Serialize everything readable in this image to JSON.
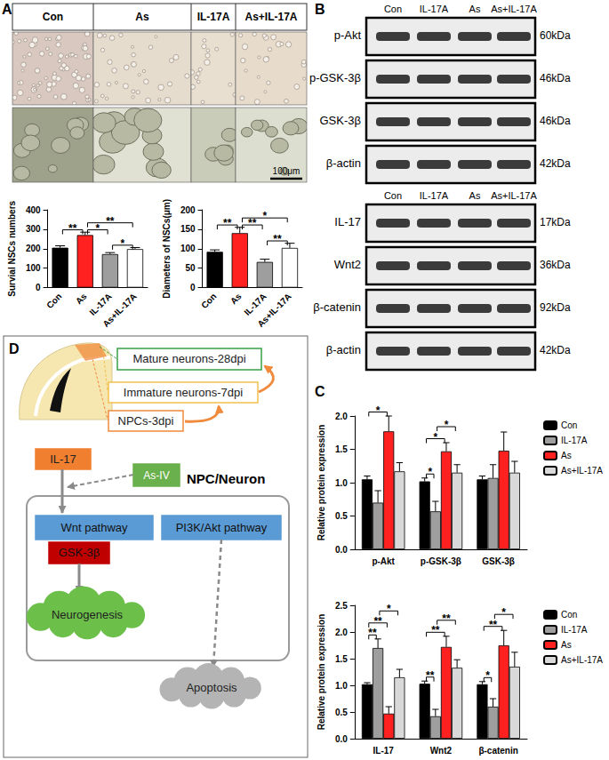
{
  "panels": {
    "A": {
      "label": "A",
      "columns": [
        "Con",
        "As",
        "IL-17A",
        "As+IL-17A"
      ],
      "scale_bar": "100μm"
    },
    "B": {
      "label": "B",
      "blots": [
        {
          "lanes": [
            "Con",
            "IL-17A",
            "As",
            "As+IL-17A"
          ],
          "rows": [
            {
              "protein": "p-Akt",
              "size": "60kDa"
            },
            {
              "protein": "p-GSK-3β",
              "size": "46kDa"
            },
            {
              "protein": "GSK-3β",
              "size": "46kDa"
            },
            {
              "protein": "β-actin",
              "size": "42kDa"
            }
          ]
        },
        {
          "lanes": [
            "Con",
            "IL-17A",
            "As",
            "As+IL-17A"
          ],
          "rows": [
            {
              "protein": "IL-17",
              "size": "17kDa"
            },
            {
              "protein": "Wnt2",
              "size": "36kDa"
            },
            {
              "protein": "β-catenin",
              "size": "92kDa"
            },
            {
              "protein": "β-actin",
              "size": "42kDa"
            }
          ]
        }
      ]
    },
    "C": {
      "label": "C"
    },
    "D": {
      "label": "D",
      "stages": [
        "Mature neurons-28dpi",
        "Immature neurons-7dpi",
        "NPCs-3dpi"
      ],
      "factor": "IL-17",
      "drug": "As-IV",
      "cell": "NPC/Neuron",
      "pathways": [
        "Wnt pathway",
        "PI3K/Akt pathway"
      ],
      "mediator": "GSK-3β",
      "outcomes": [
        "Neurogenesis",
        "Apoptosis"
      ]
    }
  },
  "chart_data": [
    {
      "type": "bar",
      "ylabel": "Survial NSCs numbers",
      "categories": [
        "Con",
        "As",
        "IL-17A",
        "As+IL-17A"
      ],
      "values": [
        205,
        270,
        172,
        198
      ],
      "errors": [
        10,
        15,
        8,
        8
      ],
      "colors": [
        "#000000",
        "#ff2020",
        "#9e9e9e",
        "#ffffff"
      ],
      "ylim": [
        0,
        400
      ],
      "yticks": [
        0,
        100,
        200,
        300,
        400
      ],
      "grid": false,
      "significance": [
        {
          "between": [
            "Con",
            "As"
          ],
          "label": "**"
        },
        {
          "between": [
            "As",
            "IL-17A"
          ],
          "label": "*"
        },
        {
          "between": [
            "IL-17A",
            "As+IL-17A"
          ],
          "label": "*"
        },
        {
          "between": [
            "As",
            "As+IL-17A"
          ],
          "label": "**"
        }
      ]
    },
    {
      "type": "bar",
      "ylabel": "Diameters of NSCs(μm)",
      "categories": [
        "Con",
        "As",
        "IL-17A",
        "As+IL-17A"
      ],
      "values": [
        92,
        140,
        66,
        102
      ],
      "errors": [
        5,
        15,
        7,
        12
      ],
      "colors": [
        "#000000",
        "#ff2020",
        "#9e9e9e",
        "#ffffff"
      ],
      "ylim": [
        0,
        200
      ],
      "yticks": [
        0,
        50,
        100,
        150,
        200
      ],
      "grid": false,
      "significance": [
        {
          "between": [
            "Con",
            "As"
          ],
          "label": "**"
        },
        {
          "between": [
            "As",
            "IL-17A"
          ],
          "label": "**"
        },
        {
          "between": [
            "IL-17A",
            "As+IL-17A"
          ],
          "label": "**"
        },
        {
          "between": [
            "As",
            "As+IL-17A"
          ],
          "label": "*"
        }
      ]
    },
    {
      "type": "bar",
      "ylabel": "Relative protein expression",
      "categories": [
        "p-Akt",
        "p-GSK-3β",
        "GSK-3β"
      ],
      "series": [
        {
          "name": "Con",
          "color": "#000000",
          "values": [
            1.05,
            1.02,
            1.05
          ],
          "errors": [
            0.05,
            0.05,
            0.05
          ]
        },
        {
          "name": "IL-17A",
          "color": "#9e9e9e",
          "values": [
            0.7,
            0.57,
            1.07
          ],
          "errors": [
            0.18,
            0.15,
            0.2
          ]
        },
        {
          "name": "As",
          "color": "#ff2020",
          "values": [
            1.77,
            1.47,
            1.48
          ],
          "errors": [
            0.23,
            0.13,
            0.28
          ]
        },
        {
          "name": "As+IL-17A",
          "color": "#d9d9d9",
          "values": [
            1.17,
            1.15,
            1.15
          ],
          "errors": [
            0.13,
            0.12,
            0.17
          ]
        }
      ],
      "ylim": [
        0,
        2
      ],
      "yticks": [
        {
          "value": 0,
          "label": "0.0"
        },
        0.5,
        {
          "value": 1,
          "label": "1.0"
        },
        1.5,
        {
          "value": 2,
          "label": "2.0"
        }
      ],
      "grid": false,
      "legend": "top-right",
      "significance": [
        {
          "category": "p-Akt",
          "between": [
            "Con",
            "As"
          ],
          "label": "*"
        },
        {
          "category": "p-GSK-3β",
          "between": [
            "Con",
            "IL-17A"
          ],
          "label": "*"
        },
        {
          "category": "p-GSK-3β",
          "between": [
            "Con",
            "As"
          ],
          "label": "*"
        },
        {
          "category": "p-GSK-3β",
          "between": [
            "IL-17A",
            "As+IL-17A"
          ],
          "label": "*"
        }
      ]
    },
    {
      "type": "bar",
      "ylabel": "Relative protein expression",
      "categories": [
        "IL-17",
        "Wnt2",
        "β-catenin"
      ],
      "series": [
        {
          "name": "Con",
          "color": "#000000",
          "values": [
            1.02,
            1.03,
            1.02
          ],
          "errors": [
            0.03,
            0.05,
            0.05
          ]
        },
        {
          "name": "IL-17A",
          "color": "#9e9e9e",
          "values": [
            1.7,
            0.42,
            0.6
          ],
          "errors": [
            0.17,
            0.13,
            0.15
          ]
        },
        {
          "name": "As",
          "color": "#ff2020",
          "values": [
            0.47,
            1.72,
            1.75
          ],
          "errors": [
            0.13,
            0.2,
            0.28
          ]
        },
        {
          "name": "As+IL-17A",
          "color": "#d9d9d9",
          "values": [
            1.15,
            1.33,
            1.35
          ],
          "errors": [
            0.15,
            0.15,
            0.27
          ]
        }
      ],
      "ylim": [
        0,
        2.5
      ],
      "yticks": [
        {
          "value": 0,
          "label": "0.0"
        },
        0.5,
        {
          "value": 1,
          "label": "1.0"
        },
        1.5,
        {
          "value": 2,
          "label": "2.0"
        },
        2.5
      ],
      "grid": false,
      "legend": "top-right",
      "significance": [
        {
          "category": "IL-17",
          "between": [
            "Con",
            "IL-17A"
          ],
          "label": "**"
        },
        {
          "category": "IL-17",
          "between": [
            "Con",
            "As"
          ],
          "label": "**"
        },
        {
          "category": "IL-17",
          "between": [
            "IL-17A",
            "As+IL-17A"
          ],
          "label": "*"
        },
        {
          "category": "Wnt2",
          "between": [
            "Con",
            "IL-17A"
          ],
          "label": "**"
        },
        {
          "category": "Wnt2",
          "between": [
            "Con",
            "As"
          ],
          "label": "**"
        },
        {
          "category": "Wnt2",
          "between": [
            "IL-17A",
            "As+IL-17A"
          ],
          "label": "**"
        },
        {
          "category": "β-catenin",
          "between": [
            "Con",
            "IL-17A"
          ],
          "label": "*"
        },
        {
          "category": "β-catenin",
          "between": [
            "Con",
            "As"
          ],
          "label": "**"
        },
        {
          "category": "β-catenin",
          "between": [
            "IL-17A",
            "As+IL-17A"
          ],
          "label": "*"
        }
      ]
    }
  ]
}
